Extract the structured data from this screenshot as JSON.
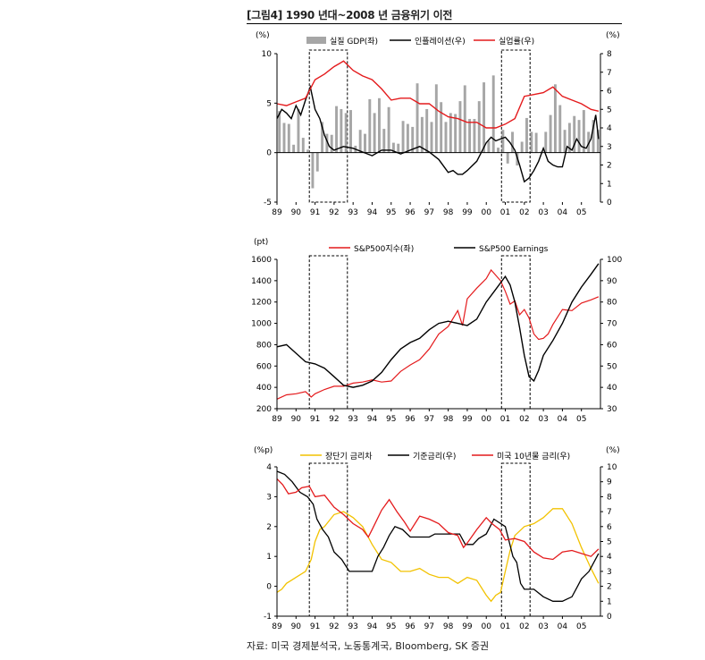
{
  "figure": {
    "title": "[그림4] 1990 년대~2008 년 금융위기 이전",
    "source": "자료: 미국 경제분석국, 노동통계국, Bloomberg, SK 증권"
  },
  "colors": {
    "red": "#e41a1c",
    "black": "#000000",
    "gray": "#a6a6a6",
    "yellow": "#f2c200"
  },
  "x_tick_labels": [
    "89",
    "90",
    "91",
    "92",
    "93",
    "94",
    "95",
    "96",
    "97",
    "98",
    "99",
    "00",
    "01",
    "02",
    "03",
    "04",
    "05"
  ],
  "recession_shading": [
    {
      "start": 1990.7,
      "end": 1992.7
    },
    {
      "start": 2000.8,
      "end": 2002.3
    }
  ],
  "chart_data": [
    {
      "type": "bar",
      "left_unit": "(%)",
      "right_unit": "(%)",
      "ylim_left": [
        -5,
        10
      ],
      "ylim_right": [
        0,
        8
      ],
      "left_ticks": [
        "-5",
        "0",
        "5",
        "10"
      ],
      "right_ticks": [
        "0",
        "1",
        "2",
        "3",
        "4",
        "5",
        "6",
        "7",
        "8"
      ],
      "legend": [
        "실질 GDP(좌)",
        "인플레이션(우)",
        "실업률(우)"
      ],
      "series": [
        {
          "name": "실질 GDP(좌)",
          "kind": "bar",
          "axis": "left",
          "x": [
            1989.0,
            1989.25,
            1989.5,
            1989.75,
            1990.0,
            1990.25,
            1990.5,
            1990.75,
            1991.0,
            1991.25,
            1991.5,
            1991.75,
            1992.0,
            1992.25,
            1992.5,
            1992.75,
            1993.0,
            1993.25,
            1993.5,
            1993.75,
            1994.0,
            1994.25,
            1994.5,
            1994.75,
            1995.0,
            1995.25,
            1995.5,
            1995.75,
            1996.0,
            1996.25,
            1996.5,
            1996.75,
            1997.0,
            1997.25,
            1997.5,
            1997.75,
            1998.0,
            1998.25,
            1998.5,
            1998.75,
            1999.0,
            1999.25,
            1999.5,
            1999.75,
            2000.0,
            2000.25,
            2000.5,
            2000.75,
            2001.0,
            2001.25,
            2001.5,
            2001.75,
            2002.0,
            2002.25,
            2002.5,
            2002.75,
            2003.0,
            2003.25,
            2003.5,
            2003.75,
            2004.0,
            2004.25,
            2004.5,
            2004.75,
            2005.0,
            2005.25,
            2005.5,
            2005.75
          ],
          "values": [
            4.2,
            3.0,
            2.9,
            0.8,
            4.4,
            1.5,
            0.3,
            -3.6,
            -1.9,
            3.1,
            1.9,
            1.8,
            4.7,
            4.4,
            4.0,
            4.3,
            0.7,
            2.3,
            1.9,
            5.4,
            4.0,
            5.5,
            2.4,
            4.6,
            1.0,
            0.9,
            3.2,
            2.9,
            2.6,
            7.0,
            3.6,
            4.4,
            3.1,
            6.9,
            5.1,
            3.1,
            4.0,
            3.9,
            5.2,
            6.8,
            3.4,
            3.4,
            5.2,
            7.1,
            1.2,
            7.8,
            0.5,
            2.3,
            -1.1,
            2.1,
            -1.3,
            1.1,
            3.5,
            2.1,
            2.0,
            0.1,
            2.1,
            3.8,
            6.9,
            4.8,
            2.3,
            3.0,
            3.7,
            3.3,
            4.3,
            2.1,
            3.3,
            2.3
          ]
        },
        {
          "name": "인플레이션(우)",
          "kind": "line",
          "axis": "right",
          "color": "#000000",
          "x": [
            1989.0,
            1989.25,
            1989.5,
            1989.75,
            1990.0,
            1990.25,
            1990.5,
            1990.75,
            1991.0,
            1991.25,
            1991.5,
            1991.75,
            1992.0,
            1992.5,
            1993.0,
            1993.5,
            1994.0,
            1994.5,
            1995.0,
            1995.5,
            1996.0,
            1996.5,
            1997.0,
            1997.5,
            1998.0,
            1998.25,
            1998.5,
            1998.75,
            1999.0,
            1999.5,
            2000.0,
            2000.25,
            2000.5,
            2000.75,
            2001.0,
            2001.25,
            2001.5,
            2001.75,
            2002.0,
            2002.25,
            2002.5,
            2002.75,
            2003.0,
            2003.25,
            2003.5,
            2003.75,
            2004.0,
            2004.25,
            2004.5,
            2004.75,
            2005.0,
            2005.25,
            2005.5,
            2005.75,
            2005.9
          ],
          "values": [
            4.5,
            5.0,
            4.8,
            4.5,
            5.2,
            4.7,
            5.5,
            6.2,
            5.0,
            4.5,
            3.6,
            3.0,
            2.8,
            3.0,
            2.9,
            2.7,
            2.5,
            2.8,
            2.8,
            2.6,
            2.8,
            3.0,
            2.7,
            2.3,
            1.6,
            1.7,
            1.5,
            1.5,
            1.7,
            2.2,
            3.2,
            3.5,
            3.3,
            3.4,
            3.5,
            3.2,
            2.8,
            2.0,
            1.1,
            1.3,
            1.7,
            2.2,
            2.9,
            2.2,
            2.0,
            1.9,
            1.9,
            3.0,
            2.8,
            3.4,
            3.0,
            2.9,
            3.4,
            4.7,
            3.4
          ]
        },
        {
          "name": "실업률(우)",
          "kind": "line",
          "axis": "right",
          "color": "#e41a1c",
          "x": [
            1989.0,
            1989.5,
            1990.0,
            1990.5,
            1991.0,
            1991.5,
            1992.0,
            1992.5,
            1993.0,
            1993.5,
            1994.0,
            1994.5,
            1995.0,
            1995.5,
            1996.0,
            1996.5,
            1997.0,
            1997.5,
            1998.0,
            1998.5,
            1999.0,
            1999.5,
            2000.0,
            2000.5,
            2001.0,
            2001.5,
            2002.0,
            2002.5,
            2003.0,
            2003.5,
            2004.0,
            2004.5,
            2005.0,
            2005.5,
            2005.9
          ],
          "values": [
            5.3,
            5.2,
            5.4,
            5.6,
            6.6,
            6.9,
            7.3,
            7.6,
            7.1,
            6.8,
            6.6,
            6.1,
            5.5,
            5.6,
            5.6,
            5.3,
            5.3,
            4.9,
            4.6,
            4.5,
            4.3,
            4.3,
            4.0,
            4.0,
            4.2,
            4.5,
            5.7,
            5.8,
            5.9,
            6.2,
            5.7,
            5.5,
            5.3,
            5.0,
            4.9
          ]
        }
      ]
    },
    {
      "type": "line",
      "left_unit": "(pt)",
      "ylim_left": [
        200,
        1600
      ],
      "ylim_right": [
        30,
        100
      ],
      "left_ticks": [
        "200",
        "400",
        "600",
        "800",
        "1000",
        "1200",
        "1400",
        "1600"
      ],
      "right_ticks": [
        "30",
        "40",
        "50",
        "60",
        "70",
        "80",
        "90",
        "100"
      ],
      "legend": [
        "S&P500지수(좌)",
        "S&P500 Earnings"
      ],
      "series": [
        {
          "name": "S&P500지수(좌)",
          "axis": "left",
          "color": "#e41a1c",
          "x": [
            1989.0,
            1989.5,
            1990.0,
            1990.5,
            1990.8,
            1991.0,
            1991.5,
            1992.0,
            1992.5,
            1993.0,
            1993.5,
            1994.0,
            1994.5,
            1995.0,
            1995.5,
            1996.0,
            1996.5,
            1997.0,
            1997.5,
            1998.0,
            1998.5,
            1998.75,
            1999.0,
            1999.5,
            2000.0,
            2000.25,
            2000.5,
            2000.75,
            2001.0,
            2001.25,
            2001.5,
            2001.75,
            2002.0,
            2002.25,
            2002.5,
            2002.75,
            2003.0,
            2003.25,
            2003.5,
            2004.0,
            2004.5,
            2005.0,
            2005.5,
            2005.9
          ],
          "values": [
            290,
            330,
            340,
            360,
            310,
            340,
            380,
            410,
            410,
            440,
            450,
            470,
            450,
            460,
            550,
            610,
            660,
            760,
            900,
            970,
            1120,
            980,
            1230,
            1330,
            1420,
            1500,
            1450,
            1400,
            1300,
            1180,
            1210,
            1080,
            1130,
            1050,
            900,
            850,
            860,
            900,
            990,
            1130,
            1120,
            1190,
            1220,
            1250
          ]
        },
        {
          "name": "S&P500 Earnings",
          "axis": "right",
          "color": "#000000",
          "x": [
            1989.0,
            1989.5,
            1990.0,
            1990.5,
            1991.0,
            1991.5,
            1992.0,
            1992.5,
            1993.0,
            1993.5,
            1994.0,
            1994.5,
            1995.0,
            1995.5,
            1996.0,
            1996.5,
            1997.0,
            1997.5,
            1998.0,
            1998.5,
            1999.0,
            1999.5,
            2000.0,
            2000.5,
            2001.0,
            2001.25,
            2001.5,
            2001.75,
            2002.0,
            2002.25,
            2002.5,
            2002.75,
            2003.0,
            2003.5,
            2004.0,
            2004.5,
            2005.0,
            2005.5,
            2005.9
          ],
          "values": [
            59,
            60,
            56,
            52,
            51,
            49,
            45,
            41,
            40,
            41,
            43,
            47,
            53,
            58,
            61,
            63,
            67,
            70,
            71,
            70,
            69,
            72,
            80,
            86,
            92,
            88,
            80,
            68,
            55,
            45,
            43,
            48,
            55,
            62,
            70,
            80,
            87,
            93,
            98
          ]
        }
      ]
    },
    {
      "type": "line",
      "left_unit": "(%p)",
      "right_unit": "(%)",
      "ylim_left": [
        -1,
        4
      ],
      "ylim_right": [
        0,
        10
      ],
      "left_ticks": [
        "-1",
        "0",
        "1",
        "2",
        "3",
        "4"
      ],
      "right_ticks": [
        "0",
        "1",
        "2",
        "3",
        "4",
        "5",
        "6",
        "7",
        "8",
        "9",
        "10"
      ],
      "legend": [
        "장단기 금리차",
        "기준금리(우)",
        "미국 10년물 금리(우)"
      ],
      "series": [
        {
          "name": "장단기 금리차",
          "axis": "left",
          "color": "#f2c200",
          "x": [
            1989.0,
            1989.25,
            1989.5,
            1989.75,
            1990.0,
            1990.5,
            1990.8,
            1991.0,
            1991.25,
            1991.5,
            1992.0,
            1992.5,
            1993.0,
            1993.5,
            1994.0,
            1994.5,
            1995.0,
            1995.5,
            1996.0,
            1996.5,
            1997.0,
            1997.5,
            1998.0,
            1998.5,
            1999.0,
            1999.5,
            2000.0,
            2000.25,
            2000.5,
            2000.75,
            2001.0,
            2001.25,
            2001.5,
            2002.0,
            2002.5,
            2003.0,
            2003.5,
            2004.0,
            2004.5,
            2005.0,
            2005.5,
            2005.9
          ],
          "values": [
            -0.2,
            -0.1,
            0.1,
            0.2,
            0.3,
            0.5,
            0.9,
            1.5,
            1.9,
            2.0,
            2.4,
            2.5,
            2.3,
            2.0,
            1.4,
            0.9,
            0.8,
            0.5,
            0.5,
            0.6,
            0.4,
            0.3,
            0.3,
            0.1,
            0.3,
            0.2,
            -0.3,
            -0.5,
            -0.3,
            -0.2,
            0.5,
            1.2,
            1.7,
            2.0,
            2.1,
            2.3,
            2.6,
            2.6,
            2.1,
            1.3,
            0.6,
            0.1
          ]
        },
        {
          "name": "기준금리(우)",
          "axis": "right",
          "color": "#000000",
          "x": [
            1989.0,
            1989.4,
            1989.8,
            1990.2,
            1990.6,
            1990.9,
            1991.1,
            1991.4,
            1991.7,
            1992.0,
            1992.4,
            1992.8,
            1993.0,
            1993.5,
            1994.0,
            1994.3,
            1994.6,
            1994.9,
            1995.2,
            1995.6,
            1996.0,
            1996.5,
            1997.0,
            1997.3,
            1997.6,
            1998.0,
            1998.6,
            1998.9,
            1999.3,
            1999.6,
            2000.0,
            2000.4,
            2001.0,
            2001.2,
            2001.4,
            2001.6,
            2001.8,
            2002.0,
            2002.5,
            2003.0,
            2003.5,
            2004.0,
            2004.5,
            2004.8,
            2005.0,
            2005.4,
            2005.9
          ],
          "values": [
            9.7,
            9.5,
            9.0,
            8.3,
            8.0,
            7.5,
            6.5,
            5.8,
            5.3,
            4.3,
            3.8,
            3.0,
            3.0,
            3.0,
            3.0,
            4.0,
            4.6,
            5.4,
            6.0,
            5.8,
            5.3,
            5.3,
            5.3,
            5.5,
            5.5,
            5.5,
            5.5,
            4.8,
            4.8,
            5.2,
            5.5,
            6.5,
            6.0,
            5.0,
            4.0,
            3.6,
            2.2,
            1.8,
            1.8,
            1.3,
            1.0,
            1.0,
            1.3,
            2.0,
            2.5,
            3.0,
            4.2
          ]
        },
        {
          "name": "미국 10년물 금리(우)",
          "axis": "right",
          "color": "#e41a1c",
          "x": [
            1989.0,
            1989.3,
            1989.6,
            1990.0,
            1990.3,
            1990.7,
            1991.0,
            1991.5,
            1992.0,
            1992.5,
            1993.0,
            1993.5,
            1993.8,
            1994.0,
            1994.5,
            1994.9,
            1995.3,
            1995.7,
            1996.0,
            1996.5,
            1997.0,
            1997.5,
            1998.0,
            1998.5,
            1998.8,
            1999.0,
            1999.5,
            2000.0,
            2000.3,
            2000.7,
            2001.0,
            2001.5,
            2002.0,
            2002.5,
            2003.0,
            2003.5,
            2004.0,
            2004.5,
            2005.0,
            2005.5,
            2005.9
          ],
          "values": [
            9.2,
            8.8,
            8.2,
            8.3,
            8.6,
            8.7,
            8.0,
            8.1,
            7.3,
            6.8,
            6.2,
            5.8,
            5.3,
            5.8,
            7.1,
            7.8,
            7.0,
            6.3,
            5.7,
            6.7,
            6.5,
            6.2,
            5.6,
            5.4,
            4.6,
            4.9,
            5.8,
            6.6,
            6.2,
            5.8,
            5.1,
            5.2,
            5.0,
            4.3,
            3.9,
            3.8,
            4.3,
            4.4,
            4.2,
            4.0,
            4.5
          ]
        }
      ]
    }
  ]
}
